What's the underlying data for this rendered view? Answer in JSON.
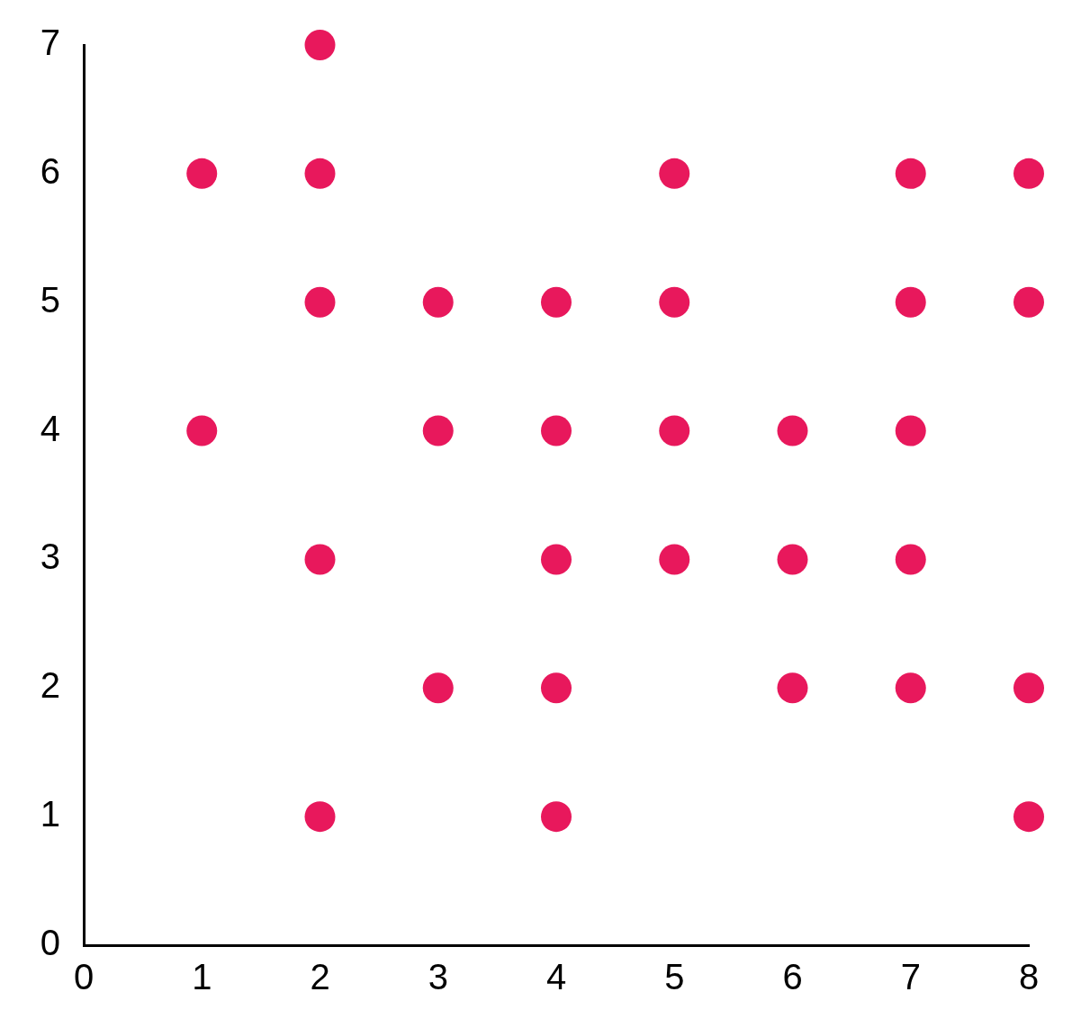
{
  "chart_data": {
    "type": "scatter",
    "x": [
      1,
      1,
      2,
      2,
      2,
      2,
      2,
      3,
      3,
      3,
      4,
      4,
      4,
      4,
      4,
      5,
      5,
      5,
      5,
      6,
      6,
      6,
      7,
      7,
      7,
      7,
      7,
      8,
      8,
      8,
      8
    ],
    "values": [
      6,
      4,
      7,
      6,
      5,
      3,
      1,
      5,
      4,
      2,
      5,
      4,
      3,
      2,
      1,
      6,
      5,
      4,
      3,
      4,
      3,
      2,
      6,
      5,
      4,
      3,
      2,
      6,
      5,
      2,
      1
    ],
    "color": "#e8185c",
    "marker": "circle",
    "xlim": [
      0,
      8
    ],
    "ylim": [
      0,
      7
    ],
    "xticks": [
      0,
      1,
      2,
      3,
      4,
      5,
      6,
      7,
      8
    ],
    "yticks": [
      0,
      1,
      2,
      3,
      4,
      5,
      6,
      7
    ]
  }
}
